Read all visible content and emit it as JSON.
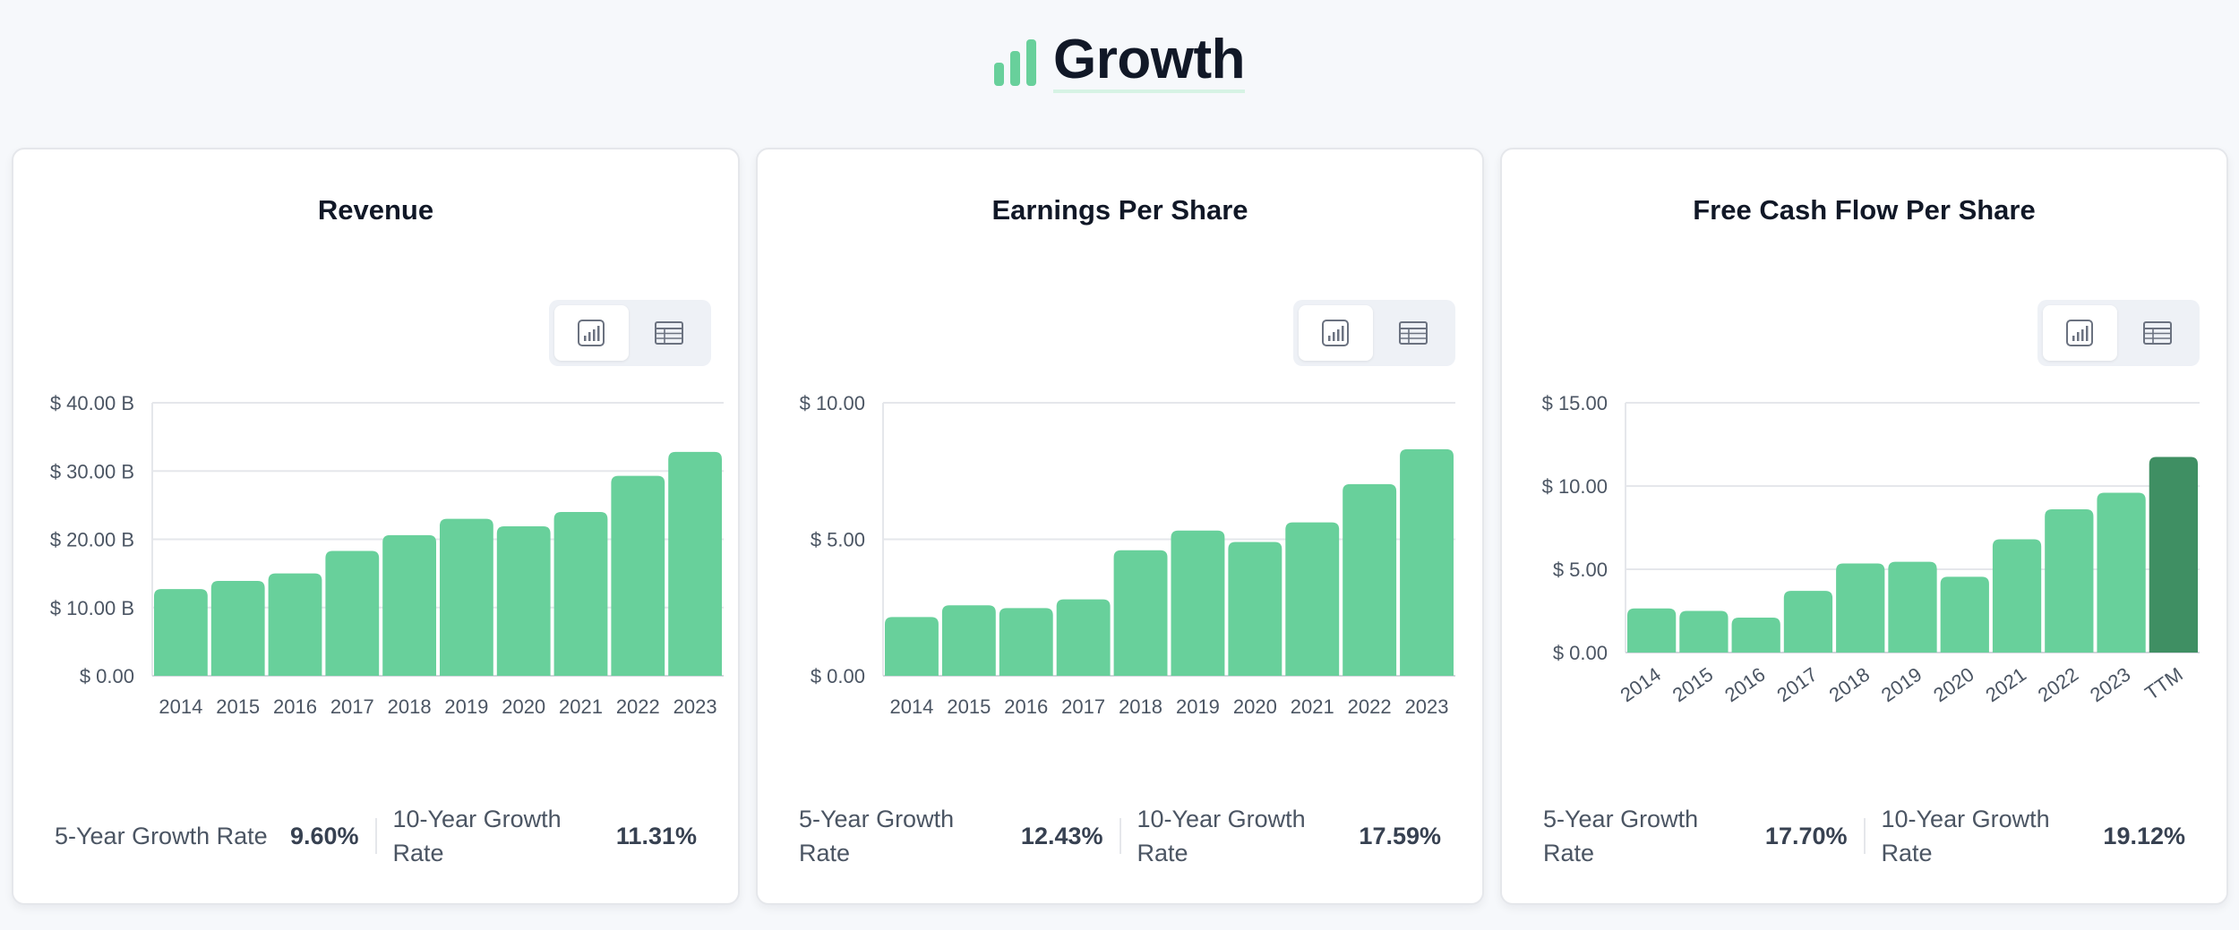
{
  "header": {
    "title": "Growth",
    "icon": "bar-chart-icon",
    "accent_color": "#68d09b"
  },
  "colors": {
    "bar": "#68d09b",
    "bar_highlight": "#3f8f63",
    "grid": "#e5e7eb"
  },
  "chart_data": [
    {
      "type": "bar",
      "title": "Revenue",
      "categories": [
        "2014",
        "2015",
        "2016",
        "2017",
        "2018",
        "2019",
        "2020",
        "2021",
        "2022",
        "2023"
      ],
      "values": [
        12.7,
        13.9,
        15.0,
        18.3,
        20.6,
        23.0,
        21.9,
        24.0,
        29.3,
        32.8
      ],
      "value_unit": "billions USD",
      "yticks": [
        0,
        10,
        20,
        30,
        40
      ],
      "ytick_labels": [
        "$ 0.00",
        "$ 10.00 B",
        "$ 20.00 B",
        "$ 30.00 B",
        "$ 40.00 B"
      ],
      "ylim": [
        0,
        40
      ],
      "highlight_index": null,
      "rotate_xlabels": false,
      "grid": true,
      "toggle": {
        "chart_view": "chart-view-icon",
        "table_view": "table-view-icon",
        "active": "chart"
      },
      "growth": {
        "five_year_label": "5-Year Growth Rate",
        "five_year_value": "9.60%",
        "ten_year_label": "10-Year Growth Rate",
        "ten_year_value": "11.31%"
      }
    },
    {
      "type": "bar",
      "title": "Earnings Per Share",
      "categories": [
        "2014",
        "2015",
        "2016",
        "2017",
        "2018",
        "2019",
        "2020",
        "2021",
        "2022",
        "2023"
      ],
      "values": [
        2.15,
        2.58,
        2.48,
        2.8,
        4.6,
        5.32,
        4.9,
        5.62,
        7.02,
        8.3
      ],
      "value_unit": "USD",
      "yticks": [
        0,
        5,
        10
      ],
      "ytick_labels": [
        "$ 0.00",
        "$ 5.00",
        "$ 10.00"
      ],
      "ylim": [
        0,
        10
      ],
      "highlight_index": null,
      "rotate_xlabels": false,
      "grid": true,
      "toggle": {
        "chart_view": "chart-view-icon",
        "table_view": "table-view-icon",
        "active": "chart"
      },
      "growth": {
        "five_year_label": "5-Year Growth Rate",
        "five_year_value": "12.43%",
        "ten_year_label": "10-Year Growth Rate",
        "ten_year_value": "17.59%"
      }
    },
    {
      "type": "bar",
      "title": "Free Cash Flow Per Share",
      "categories": [
        "2014",
        "2015",
        "2016",
        "2017",
        "2018",
        "2019",
        "2020",
        "2021",
        "2022",
        "2023",
        "TTM"
      ],
      "values": [
        2.65,
        2.5,
        2.1,
        3.7,
        5.35,
        5.45,
        4.55,
        6.8,
        8.6,
        9.6,
        11.75
      ],
      "value_unit": "USD",
      "yticks": [
        0,
        5,
        10,
        15
      ],
      "ytick_labels": [
        "$ 0.00",
        "$ 5.00",
        "$ 10.00",
        "$ 15.00"
      ],
      "ylim": [
        0,
        15
      ],
      "highlight_index": 10,
      "rotate_xlabels": true,
      "grid": true,
      "toggle": {
        "chart_view": "chart-view-icon",
        "table_view": "table-view-icon",
        "active": "chart"
      },
      "growth": {
        "five_year_label": "5-Year Growth Rate",
        "five_year_value": "17.70%",
        "ten_year_label": "10-Year Growth Rate",
        "ten_year_value": "19.12%"
      }
    }
  ]
}
